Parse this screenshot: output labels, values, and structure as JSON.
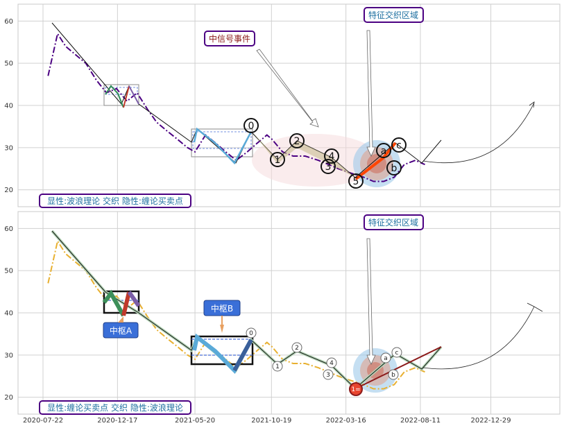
{
  "chart_data": [
    {
      "type": "line",
      "panel": "top",
      "ylim": [
        16,
        64
      ],
      "yticks": [
        20,
        30,
        40,
        50,
        60
      ],
      "grid": true,
      "series": [
        {
          "style": "dashdot",
          "color": "#4b0082",
          "x": [
            "2020-08-01",
            "2020-08-20",
            "2020-09-05",
            "2020-09-25",
            "2020-10-15",
            "2020-11-05",
            "2020-11-25",
            "2020-12-15",
            "2021-01-05",
            "2021-01-25",
            "2021-02-15",
            "2021-03-05",
            "2021-03-25",
            "2021-04-15",
            "2021-05-05",
            "2021-05-20",
            "2021-06-10",
            "2021-07-01",
            "2021-07-20",
            "2021-08-10",
            "2021-09-01",
            "2021-09-20",
            "2021-10-10",
            "2021-10-20",
            "2021-11-10",
            "2021-12-01",
            "2021-12-25",
            "2022-01-20",
            "2022-02-10",
            "2022-03-01",
            "2022-03-25",
            "2022-04-20",
            "2022-05-10",
            "2022-05-30",
            "2022-06-20",
            "2022-07-10",
            "2022-08-01",
            "2022-08-20"
          ],
          "y": [
            47,
            57,
            54,
            52,
            50,
            46,
            43,
            44,
            41,
            43,
            39,
            36,
            34,
            32,
            30,
            29,
            33,
            31,
            29,
            27,
            29,
            31,
            33,
            32,
            29,
            28,
            28,
            27,
            26,
            25,
            24,
            23,
            22,
            22,
            23,
            26,
            27,
            26
          ]
        }
      ],
      "annotations": {
        "wave_labels": [
          "0",
          "1",
          "2",
          "3",
          "4",
          "5",
          "a",
          "b",
          "c"
        ],
        "boxes": [
          {
            "text": "中信号事件",
            "color": "#8b1a1a"
          },
          {
            "text": "特征交织区域",
            "color": "#1e6fa0"
          },
          {
            "text": "显性:波浪理论 交织 隐性:缠论买卖点",
            "color": "#1e6fa0"
          }
        ]
      }
    },
    {
      "type": "line",
      "panel": "bottom",
      "ylim": [
        16,
        64
      ],
      "yticks": [
        20,
        30,
        40,
        50,
        60
      ],
      "grid": true,
      "xticks": [
        "2020-07-22",
        "2020-12-17",
        "2021-05-20",
        "2021-10-19",
        "2022-03-16",
        "2022-08-11",
        "2022-12-29"
      ],
      "series": [
        {
          "style": "dashdot",
          "color": "#e8b030",
          "x": [
            "2020-08-01",
            "2020-08-20",
            "2020-09-05",
            "2020-09-25",
            "2020-10-15",
            "2020-11-05",
            "2020-11-25",
            "2020-12-15",
            "2021-01-05",
            "2021-01-25",
            "2021-02-15",
            "2021-03-05",
            "2021-03-25",
            "2021-04-15",
            "2021-05-05",
            "2021-05-20",
            "2021-06-10",
            "2021-07-01",
            "2021-07-20",
            "2021-08-10",
            "2021-09-01",
            "2021-09-20",
            "2021-10-10",
            "2021-10-20",
            "2021-11-10",
            "2021-12-01",
            "2021-12-25",
            "2022-01-20",
            "2022-02-10",
            "2022-03-01",
            "2022-03-25",
            "2022-04-20",
            "2022-05-10",
            "2022-05-30",
            "2022-06-20",
            "2022-07-10",
            "2022-08-01",
            "2022-08-20"
          ],
          "y": [
            47,
            57,
            54,
            52,
            50,
            46,
            43,
            44,
            41,
            43,
            39,
            36,
            34,
            32,
            30,
            29,
            33,
            31,
            29,
            27,
            29,
            31,
            33,
            32,
            29,
            28,
            28,
            27,
            26,
            25,
            24,
            23,
            22,
            22,
            23,
            26,
            27,
            26
          ]
        }
      ],
      "annotations": {
        "wave_labels": [
          "0",
          "1",
          "2",
          "3",
          "4",
          "a",
          "b",
          "c",
          "1="
        ],
        "boxes": [
          {
            "text": "中枢A",
            "color": "#ffffff",
            "fill": "#3a6fd8"
          },
          {
            "text": "中枢B",
            "color": "#ffffff",
            "fill": "#3a6fd8"
          },
          {
            "text": "特征交织区域",
            "color": "#1e6fa0"
          },
          {
            "text": "显性:缠论买卖点 交织 隐性:波浪理论",
            "color": "#1e6fa0"
          }
        ]
      }
    }
  ],
  "colors": {
    "top_price": "#4b0082",
    "bottom_price": "#e8b030",
    "frame": "#4b0082",
    "label_blue": "#1e6fa0",
    "label_red": "#8b1a1a"
  }
}
